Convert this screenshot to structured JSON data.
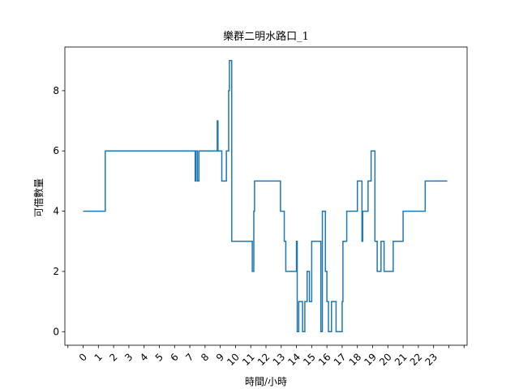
{
  "chart_data": {
    "type": "line",
    "title": "樂群二明水路口_1",
    "xlabel": "時間/小時",
    "ylabel": "可借數量",
    "xlim": [
      -1.2,
      25.2
    ],
    "ylim": [
      -0.45,
      9.45
    ],
    "x_ticks": [
      -1,
      0,
      1,
      2,
      3,
      4,
      5,
      6,
      7,
      8,
      9,
      10,
      11,
      12,
      13,
      14,
      15,
      16,
      17,
      18,
      19,
      20,
      21,
      22,
      23,
      24,
      25
    ],
    "x_tick_labels": [
      "",
      "0",
      "1",
      "2",
      "3",
      "4",
      "5",
      "6",
      "7",
      "8",
      "9",
      "10",
      "11",
      "12",
      "13",
      "14",
      "15",
      "16",
      "17",
      "18",
      "19",
      "20",
      "21",
      "22",
      "23",
      "",
      ""
    ],
    "y_ticks": [
      0,
      2,
      4,
      6,
      8
    ],
    "grid": false,
    "line_color": "#1f77b4",
    "step": "post",
    "series": [
      {
        "x": [
          0.0,
          1.45,
          7.35,
          7.4,
          7.5,
          7.6,
          7.8,
          8.8,
          8.85,
          8.9,
          9.1,
          9.4,
          9.55,
          9.6,
          9.65,
          9.75,
          10.1,
          11.1,
          11.2,
          11.25,
          11.35,
          12.95,
          13.2,
          13.3,
          13.5,
          14.0,
          14.05,
          14.15,
          14.4,
          14.55,
          14.7,
          14.85,
          15.0,
          15.1,
          15.6,
          15.7,
          15.9,
          16.0,
          16.05,
          16.1,
          16.3,
          16.6,
          16.7,
          17.0,
          17.05,
          17.1,
          17.3,
          18.0,
          18.3,
          18.35,
          18.5,
          18.7,
          18.9,
          18.95,
          19.15,
          19.3,
          19.55,
          19.75,
          19.85,
          20.35,
          21.0,
          22.45,
          23.9
        ],
        "y": [
          4,
          6,
          5,
          6,
          5,
          6,
          6,
          7,
          6,
          6,
          5,
          6,
          8,
          9,
          9,
          3,
          3,
          2,
          4,
          5,
          5,
          4,
          3,
          2,
          2,
          3,
          0,
          1,
          0,
          1,
          2,
          1,
          3,
          3,
          0,
          4,
          2,
          1,
          1,
          0,
          1,
          0,
          0,
          1,
          3,
          3,
          4,
          5,
          3,
          4,
          4,
          5,
          6,
          6,
          3,
          2,
          3,
          2,
          2,
          3,
          4,
          5,
          5
        ]
      }
    ]
  }
}
